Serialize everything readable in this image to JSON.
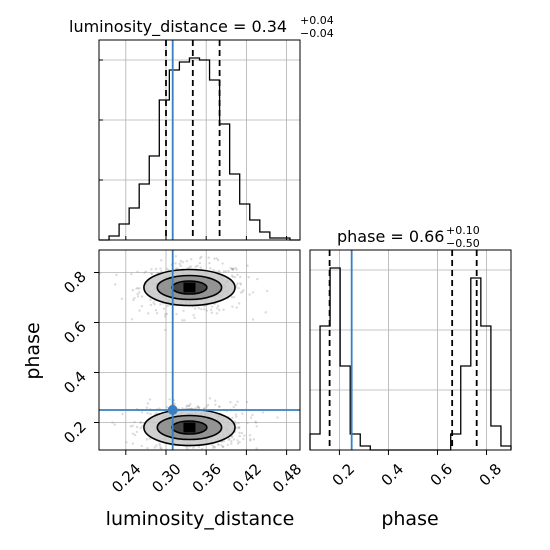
{
  "chart_data": {
    "type": "corner",
    "colors": {
      "truth": "#3a7ebf",
      "hist": "#000000",
      "grid": "#b0b0b0",
      "scatter": "#999999"
    },
    "truth": {
      "luminosity_distance": 0.31,
      "phase": 0.25
    },
    "panels": {
      "hist_dist": {
        "title_main": "luminosity_distance = 0.34",
        "title_sup": "+0.04",
        "title_sub": "−0.04",
        "xlim": [
          0.2,
          0.5
        ],
        "ylim": [
          0,
          1.0
        ],
        "xgrid": [
          0.24,
          0.3,
          0.36,
          0.42,
          0.48
        ],
        "yticks": [
          0.3,
          0.6,
          0.9
        ],
        "bin_edges": [
          0.2,
          0.215,
          0.23,
          0.245,
          0.26,
          0.275,
          0.29,
          0.305,
          0.32,
          0.335,
          0.35,
          0.365,
          0.38,
          0.395,
          0.41,
          0.425,
          0.44,
          0.455,
          0.47,
          0.485,
          0.5
        ],
        "counts": [
          0.0,
          0.02,
          0.08,
          0.16,
          0.28,
          0.42,
          0.7,
          0.85,
          0.89,
          0.91,
          0.9,
          0.8,
          0.58,
          0.33,
          0.18,
          0.1,
          0.04,
          0.01,
          0.01,
          0.0
        ],
        "quantiles": [
          0.3,
          0.34,
          0.38
        ]
      },
      "scatter": {
        "xlabel": "luminosity_distance",
        "ylabel": "phase",
        "xlim": [
          0.2,
          0.5
        ],
        "ylim": [
          0.09,
          0.89
        ],
        "xticks": [
          0.24,
          0.3,
          0.36,
          0.42,
          0.48
        ],
        "xticklabels": [
          "0.24",
          "0.30",
          "0.36",
          "0.42",
          "0.48"
        ],
        "yticks": [
          0.2,
          0.4,
          0.6,
          0.8
        ],
        "yticklabels": [
          "0.2",
          "0.4",
          "0.6",
          "0.8"
        ],
        "clusters": [
          {
            "cx": 0.34,
            "cy": 0.74,
            "sx": 0.04,
            "sy": 0.05,
            "n": 520
          },
          {
            "cx": 0.34,
            "cy": 0.18,
            "sx": 0.04,
            "sy": 0.05,
            "n": 520
          }
        ],
        "contours": [
          {
            "cx": 0.335,
            "cy": 0.74,
            "rx": [
              0.068,
              0.048,
              0.026
            ],
            "ry": [
              0.072,
              0.048,
              0.026
            ]
          },
          {
            "cx": 0.335,
            "cy": 0.18,
            "rx": [
              0.068,
              0.048,
              0.026
            ],
            "ry": [
              0.072,
              0.048,
              0.026
            ]
          }
        ]
      },
      "hist_phase": {
        "title_main": "phase = 0.66",
        "title_sup": "+0.10",
        "title_sub": "−0.50",
        "xlabel": "phase",
        "xlim": [
          0.08,
          0.9
        ],
        "ylim": [
          0,
          1.0
        ],
        "xticks": [
          0.2,
          0.4,
          0.6,
          0.8
        ],
        "xticklabels": [
          "0.2",
          "0.4",
          "0.6",
          "0.8"
        ],
        "bin_edges": [
          0.08,
          0.121,
          0.162,
          0.203,
          0.244,
          0.285,
          0.326,
          0.367,
          0.408,
          0.449,
          0.49,
          0.531,
          0.572,
          0.613,
          0.654,
          0.695,
          0.736,
          0.777,
          0.818,
          0.859,
          0.9
        ],
        "counts": [
          0.08,
          0.62,
          0.91,
          0.42,
          0.08,
          0.02,
          0.0,
          0.0,
          0.0,
          0.0,
          0.0,
          0.0,
          0.0,
          0.0,
          0.08,
          0.42,
          0.86,
          0.62,
          0.12,
          0.02
        ],
        "quantiles": [
          0.16,
          0.66,
          0.76
        ]
      }
    }
  }
}
